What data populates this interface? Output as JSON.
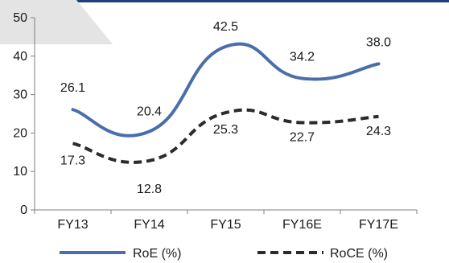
{
  "chart_data": {
    "type": "line",
    "categories": [
      "FY13",
      "FY14",
      "FY15",
      "FY16E",
      "FY17E"
    ],
    "series": [
      {
        "name": "RoE (%)",
        "values": [
          26.1,
          20.4,
          42.5,
          34.2,
          38.0
        ],
        "labels": [
          "26.1",
          "20.4",
          "42.5",
          "34.2",
          "38.0"
        ],
        "color": "#4a6ea9",
        "dashed": false
      },
      {
        "name": "RoCE (%)",
        "values": [
          17.3,
          12.8,
          25.3,
          22.7,
          24.3
        ],
        "labels": [
          "17.3",
          "12.8",
          "25.3",
          "22.7",
          "24.3"
        ],
        "color": "#2b2b2b",
        "dashed": true
      }
    ],
    "ylim": [
      0,
      50
    ],
    "yticks": [
      "0",
      "10",
      "20",
      "30",
      "40",
      "50"
    ],
    "grid": false,
    "legend_position": "bottom",
    "smooth": true
  },
  "colors": {
    "top_bar": "#1f3f7a",
    "corner_shape": "#e4e4e4"
  }
}
